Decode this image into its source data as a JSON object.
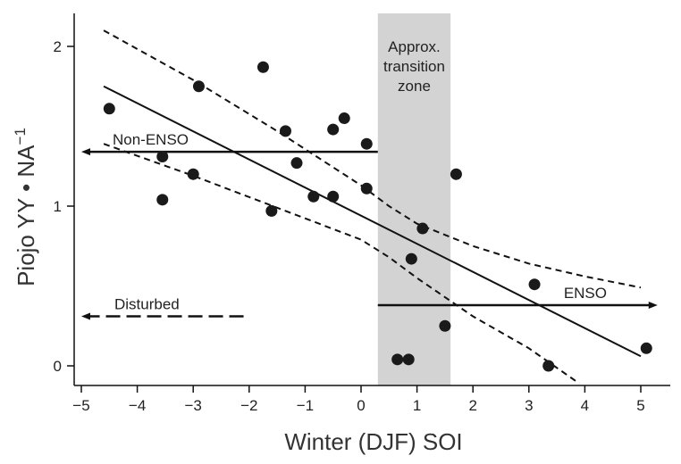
{
  "chart_data": {
    "type": "scatter",
    "title": "",
    "xlabel": "Winter (DJF) SOI",
    "ylabel": "Piojo YY • NA",
    "ylabel_superscript": "−1",
    "xlim": [
      -5.2,
      5.5
    ],
    "ylim": [
      -0.1,
      2.2
    ],
    "xticks": [
      -5,
      -4,
      -3,
      -2,
      -1,
      0,
      1,
      2,
      3,
      4,
      5
    ],
    "xtick_labels": [
      "−5",
      "−4",
      "−3",
      "−2",
      "−1",
      "0",
      "1",
      "2",
      "3",
      "4",
      "5"
    ],
    "yticks": [
      0,
      1,
      2
    ],
    "ytick_labels": [
      "0",
      "1",
      "2"
    ],
    "points": [
      {
        "x": -4.5,
        "y": 1.61
      },
      {
        "x": -3.55,
        "y": 1.31
      },
      {
        "x": -3.55,
        "y": 1.04
      },
      {
        "x": -3.0,
        "y": 1.2
      },
      {
        "x": -2.9,
        "y": 1.75
      },
      {
        "x": -1.75,
        "y": 1.87
      },
      {
        "x": -1.6,
        "y": 0.97
      },
      {
        "x": -1.35,
        "y": 1.47
      },
      {
        "x": -1.15,
        "y": 1.27
      },
      {
        "x": -0.85,
        "y": 1.06
      },
      {
        "x": -0.5,
        "y": 1.48
      },
      {
        "x": -0.5,
        "y": 1.06
      },
      {
        "x": -0.3,
        "y": 1.55
      },
      {
        "x": 0.1,
        "y": 1.39
      },
      {
        "x": 0.1,
        "y": 1.11
      },
      {
        "x": 0.65,
        "y": 0.04
      },
      {
        "x": 0.85,
        "y": 0.04
      },
      {
        "x": 0.9,
        "y": 0.67
      },
      {
        "x": 1.1,
        "y": 0.86
      },
      {
        "x": 1.5,
        "y": 0.25
      },
      {
        "x": 1.7,
        "y": 1.2
      },
      {
        "x": 3.1,
        "y": 0.51
      },
      {
        "x": 3.35,
        "y": 0.0
      },
      {
        "x": 5.1,
        "y": 0.11
      }
    ],
    "regression": {
      "x1": -4.6,
      "y1": 1.75,
      "x2": 5.0,
      "y2": 0.06
    },
    "ci_upper": [
      [
        -4.6,
        2.1
      ],
      [
        -3.0,
        1.79
      ],
      [
        -1.5,
        1.47
      ],
      [
        0.0,
        1.13
      ],
      [
        0.5,
        1.0
      ],
      [
        1.0,
        0.89
      ],
      [
        2.0,
        0.75
      ],
      [
        3.0,
        0.64
      ],
      [
        4.0,
        0.56
      ],
      [
        5.0,
        0.49
      ]
    ],
    "ci_lower": [
      [
        -4.6,
        1.39
      ],
      [
        -3.0,
        1.19
      ],
      [
        -1.5,
        0.99
      ],
      [
        0.0,
        0.79
      ],
      [
        0.5,
        0.68
      ],
      [
        1.0,
        0.55
      ],
      [
        1.5,
        0.43
      ],
      [
        2.0,
        0.31
      ],
      [
        3.0,
        0.11
      ],
      [
        3.9,
        -0.11
      ]
    ],
    "transition_zone": {
      "x_min": 0.3,
      "x_max": 1.6
    },
    "annotations": {
      "zone_label": [
        "Approx.",
        "transition",
        "zone"
      ],
      "non_enso": {
        "label": "Non-ENSO",
        "y": 1.34,
        "x_start": 0.3,
        "x_end": -5.0
      },
      "enso": {
        "label": "ENSO",
        "y": 0.38,
        "x_start": 0.3,
        "x_end": 5.3
      },
      "disturbed": {
        "label": "Disturbed",
        "y": 0.31,
        "x_start": -2.1,
        "x_end": -5.0
      }
    }
  }
}
